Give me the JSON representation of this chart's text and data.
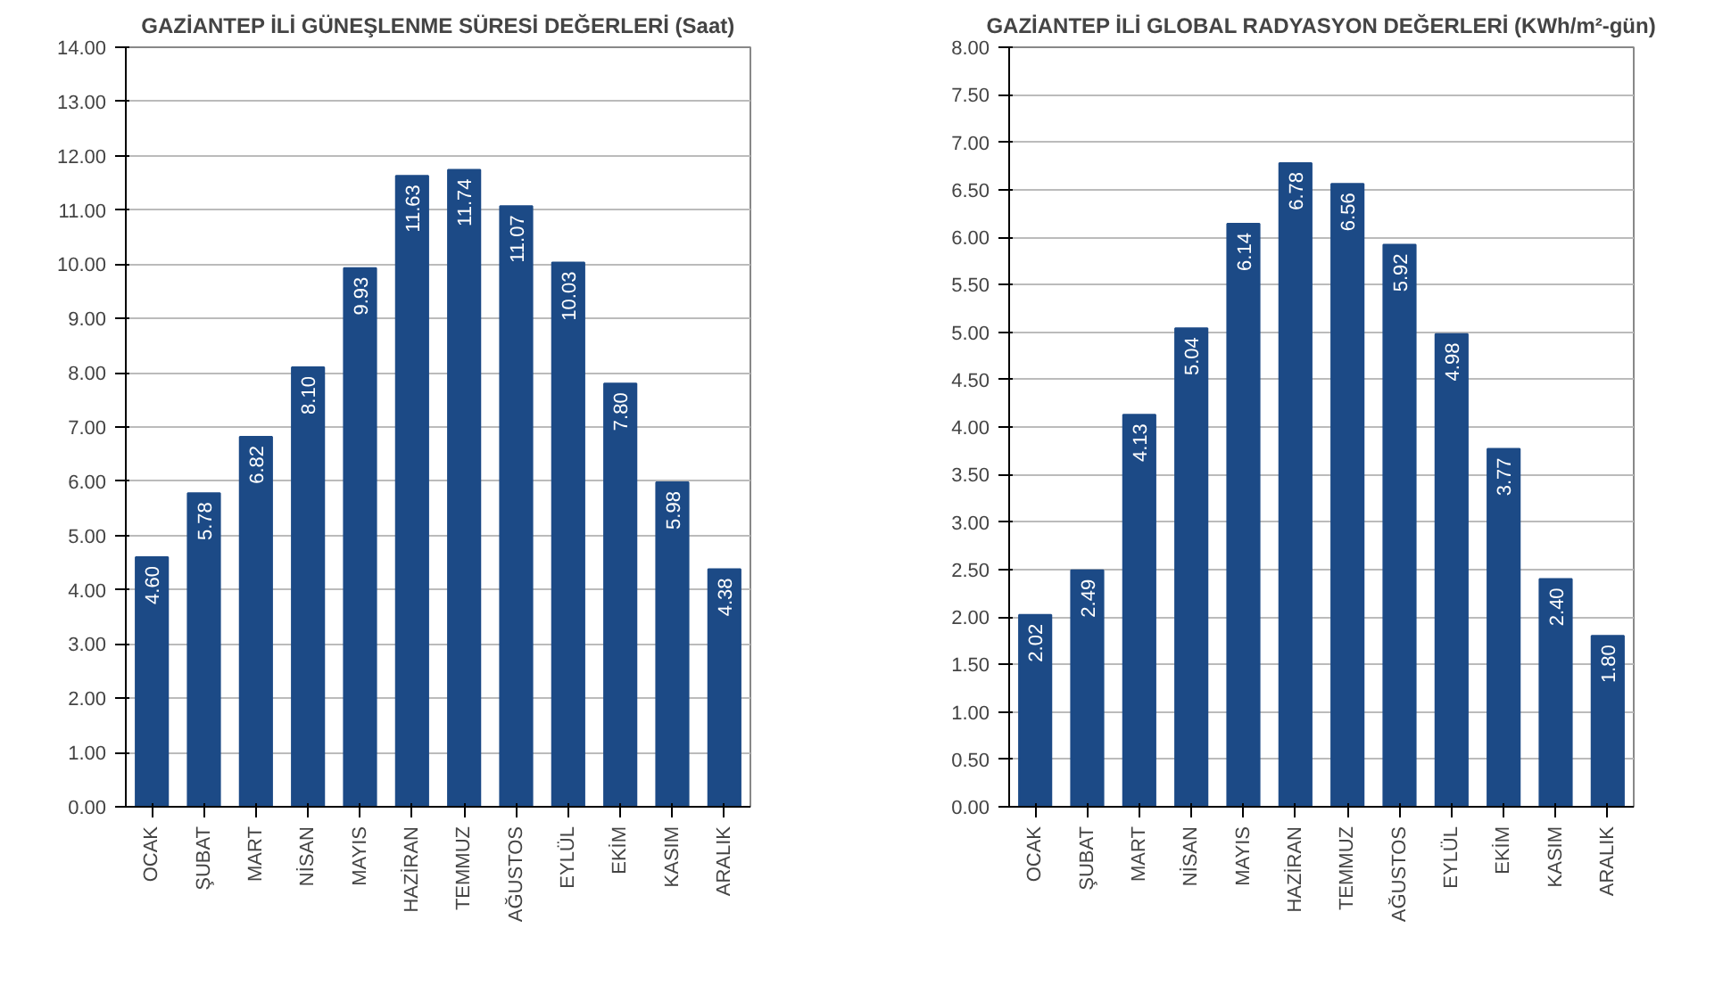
{
  "chart_data": [
    {
      "type": "bar",
      "title": "GAZİANTEP İLİ GÜNEŞLENME SÜRESİ DEĞERLERİ (Saat)",
      "categories": [
        "OCAK",
        "ŞUBAT",
        "MART",
        "NİSAN",
        "MAYIS",
        "HAZİRAN",
        "TEMMUZ",
        "AĞUSTOS",
        "EYLÜL",
        "EKİM",
        "KASIM",
        "ARALIK"
      ],
      "values": [
        4.6,
        5.78,
        6.82,
        8.1,
        9.93,
        11.63,
        11.74,
        11.07,
        10.03,
        7.8,
        5.98,
        4.38
      ],
      "value_labels": [
        "4.60",
        "5.78",
        "6.82",
        "8.10",
        "9.93",
        "11.63",
        "11.74",
        "11.07",
        "10.03",
        "7.80",
        "5.98",
        "4.38"
      ],
      "color": "#1c4a86",
      "ylim": [
        0,
        14
      ],
      "yticks": [
        {
          "value": 0,
          "label": "0.00"
        },
        {
          "value": 1,
          "label": "1.00"
        },
        {
          "value": 2,
          "label": "2.00"
        },
        {
          "value": 3,
          "label": "3.00"
        },
        {
          "value": 4,
          "label": "4.00"
        },
        {
          "value": 5,
          "label": "5.00"
        },
        {
          "value": 6,
          "label": "6.00"
        },
        {
          "value": 7,
          "label": "7.00"
        },
        {
          "value": 8,
          "label": "8.00"
        },
        {
          "value": 9,
          "label": "9.00"
        },
        {
          "value": 10,
          "label": "10.00"
        },
        {
          "value": 11,
          "label": "11.00"
        },
        {
          "value": 12,
          "label": "12.00"
        },
        {
          "value": 13,
          "label": "13.00"
        },
        {
          "value": 14,
          "label": "14.00"
        }
      ],
      "grid": "y"
    },
    {
      "type": "bar",
      "title": "GAZİANTEP İLİ GLOBAL RADYASYON DEĞERLERİ (KWh/m²-gün)",
      "categories": [
        "OCAK",
        "ŞUBAT",
        "MART",
        "NİSAN",
        "MAYIS",
        "HAZİRAN",
        "TEMMUZ",
        "AĞUSTOS",
        "EYLÜL",
        "EKİM",
        "KASIM",
        "ARALIK"
      ],
      "values": [
        2.02,
        2.49,
        4.13,
        5.04,
        6.14,
        6.78,
        6.56,
        5.92,
        4.98,
        3.77,
        2.4,
        1.8
      ],
      "value_labels": [
        "2.02",
        "2.49",
        "4.13",
        "5.04",
        "6.14",
        "6.78",
        "6.56",
        "5.92",
        "4.98",
        "3.77",
        "2.40",
        "1.80"
      ],
      "color": "#1c4a86",
      "ylim": [
        0,
        8
      ],
      "yticks": [
        {
          "value": 0,
          "label": "0.00"
        },
        {
          "value": 0.5,
          "label": "0.50"
        },
        {
          "value": 1,
          "label": "1.00"
        },
        {
          "value": 1.5,
          "label": "1.50"
        },
        {
          "value": 2,
          "label": "2.00"
        },
        {
          "value": 2.5,
          "label": "2.50"
        },
        {
          "value": 3,
          "label": "3.00"
        },
        {
          "value": 3.5,
          "label": "3.50"
        },
        {
          "value": 4,
          "label": "4.00"
        },
        {
          "value": 4.5,
          "label": "4.50"
        },
        {
          "value": 5,
          "label": "5.00"
        },
        {
          "value": 5.5,
          "label": "5.50"
        },
        {
          "value": 6,
          "label": "6.00"
        },
        {
          "value": 6.5,
          "label": "6.50"
        },
        {
          "value": 7,
          "label": "7.00"
        },
        {
          "value": 7.5,
          "label": "7.50"
        },
        {
          "value": 8,
          "label": "8.00"
        }
      ],
      "grid": "y"
    }
  ]
}
